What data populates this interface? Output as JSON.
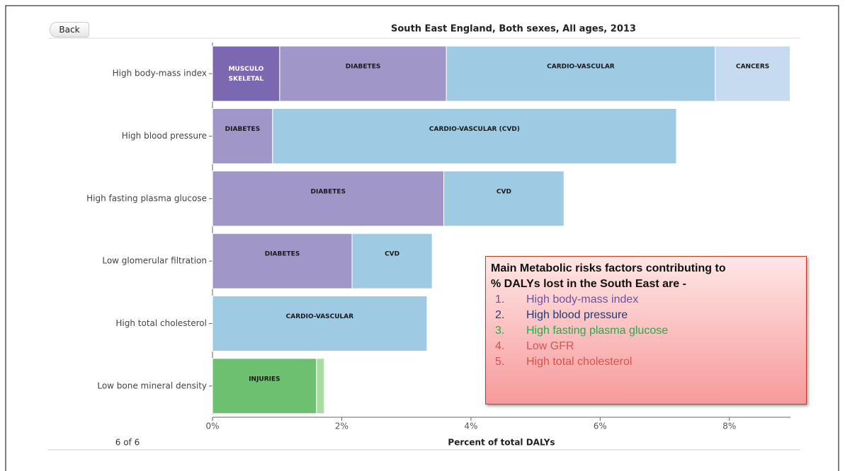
{
  "back_button": "Back",
  "pager": "6 of 6",
  "chart_data": {
    "type": "stacked-bar-horizontal",
    "title": "South East England, Both sexes, All ages, 2013",
    "xlabel": "Percent of total DALYs",
    "categories": [
      "High body-mass index",
      "High blood pressure",
      "High fasting plasma glucose",
      "Low glomerular filtration",
      "High total cholesterol",
      "Low bone mineral density"
    ],
    "bars": [
      {
        "segments": [
          {
            "label": "MUSCULO SKELETAL",
            "value": 1.04,
            "color": "#7b68b0",
            "text_color": "#ffffff"
          },
          {
            "label": "DIABETES",
            "value": 2.58,
            "color": "#a097c8",
            "text_color": "#1a1a1a"
          },
          {
            "label": "CARDIO-VASCULAR",
            "value": 4.16,
            "color": "#9fcae3",
            "text_color": "#1a1a1a"
          },
          {
            "label": "CANCERS",
            "value": 1.16,
            "color": "#c6dbef",
            "text_color": "#1a1a1a"
          }
        ]
      },
      {
        "segments": [
          {
            "label": "DIABETES",
            "value": 0.93,
            "color": "#a097c8",
            "text_color": "#1a1a1a"
          },
          {
            "label": "CARDIO-VASCULAR  (CVD)",
            "value": 6.25,
            "color": "#9fcae3",
            "text_color": "#1a1a1a"
          }
        ]
      },
      {
        "segments": [
          {
            "label": "DIABETES",
            "value": 3.58,
            "color": "#a097c8",
            "text_color": "#1a1a1a"
          },
          {
            "label": "CVD",
            "value": 1.86,
            "color": "#9fcae3",
            "text_color": "#1a1a1a"
          }
        ]
      },
      {
        "segments": [
          {
            "label": "DIABETES",
            "value": 2.16,
            "color": "#a097c8",
            "text_color": "#1a1a1a"
          },
          {
            "label": "CVD",
            "value": 1.24,
            "color": "#9fcae3",
            "text_color": "#1a1a1a"
          }
        ]
      },
      {
        "segments": [
          {
            "label": "CARDIO-VASCULAR",
            "value": 3.32,
            "color": "#9fcae3",
            "text_color": "#1a1a1a"
          }
        ]
      },
      {
        "segments": [
          {
            "label": "INJURIES",
            "value": 1.61,
            "color": "#6cc070",
            "text_color": "#1a1a1a"
          },
          {
            "value": 0.12,
            "color": "#a8dca0"
          }
        ]
      }
    ],
    "xlim": [
      0,
      9
    ],
    "xticks": [
      {
        "value": 0,
        "label": "0%"
      },
      {
        "value": 2,
        "label": "2%"
      },
      {
        "value": 4,
        "label": "4%"
      },
      {
        "value": 6,
        "label": "6%"
      },
      {
        "value": 8,
        "label": "8%"
      }
    ]
  },
  "annotation": {
    "heading": [
      "Main Metabolic risks factors contributing to",
      "% DALYs lost in the South East are -"
    ],
    "items": [
      {
        "number": "1.",
        "text": "High body-mass index",
        "color": "#6d52a0"
      },
      {
        "number": "2.",
        "text": "High blood pressure",
        "color": "#1f3a78"
      },
      {
        "number": "3.",
        "text": "High fasting plasma glucose",
        "color": "#1fae48"
      },
      {
        "number": "4.",
        "text": "Low GFR",
        "color": "#d9534f"
      },
      {
        "number": "5.",
        "text": "High total cholesterol",
        "color": "#d9534f"
      }
    ]
  }
}
